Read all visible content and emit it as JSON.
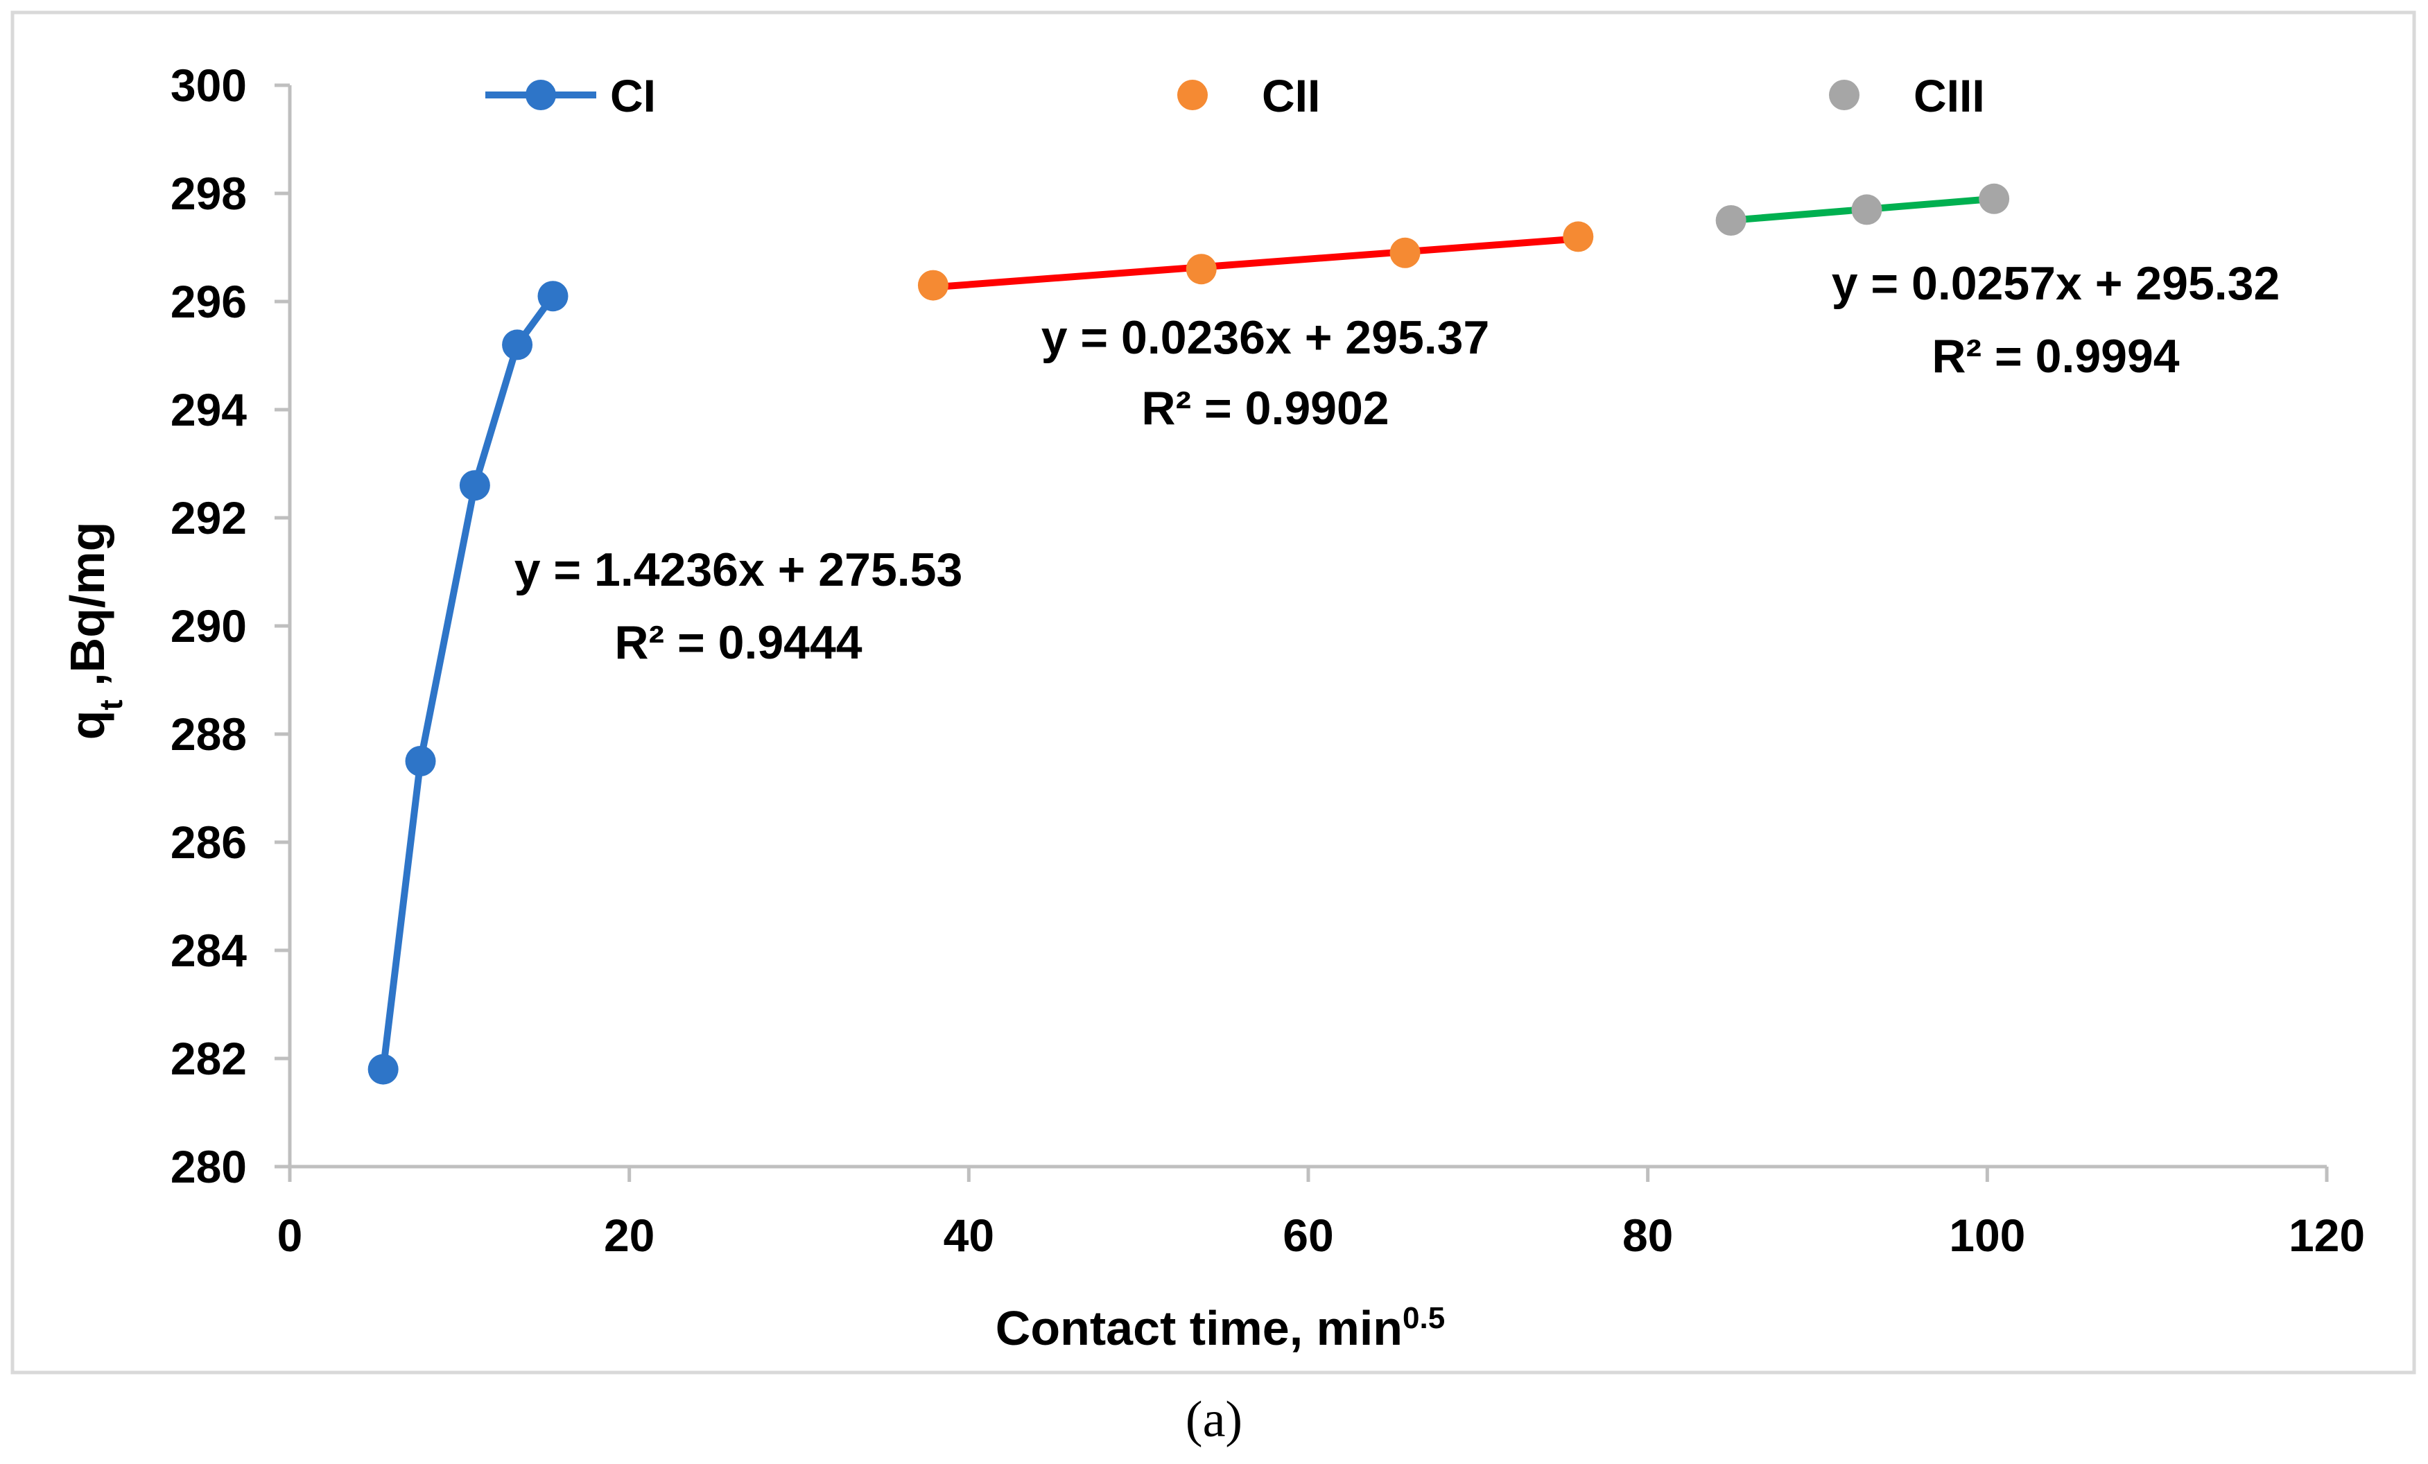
{
  "chart_data": {
    "type": "scatter",
    "caption": "(a)",
    "xlabel": "Contact time, min",
    "xlabel_superscript": "0.5",
    "ylabel": "q",
    "ylabel_subscript": "t",
    "ylabel_rest": " ,Bq/mg",
    "xlim": [
      0,
      120
    ],
    "ylim": [
      280,
      300
    ],
    "x_ticks": [
      0,
      20,
      40,
      60,
      80,
      100,
      120
    ],
    "y_ticks": [
      280,
      282,
      284,
      286,
      288,
      290,
      292,
      294,
      296,
      298,
      300
    ],
    "grid": false,
    "legend_position": "top",
    "series": [
      {
        "name": "CI",
        "color": "#2E75C8",
        "line_color": "#2E75C8",
        "connected": true,
        "points": [
          [
            5.5,
            281.8
          ],
          [
            7.7,
            287.5
          ],
          [
            10.9,
            292.6
          ],
          [
            13.4,
            295.2
          ],
          [
            15.5,
            296.1
          ]
        ],
        "equation": "y = 1.4236x + 275.53",
        "r2": "R² = 0.9444"
      },
      {
        "name": "CII",
        "color": "#F58A33",
        "line_color": "#FF0000",
        "connected": false,
        "points": [
          [
            37.9,
            296.3
          ],
          [
            53.7,
            296.6
          ],
          [
            65.7,
            296.9
          ],
          [
            75.9,
            297.2
          ]
        ],
        "trendline": {
          "slope": 0.0236,
          "intercept": 295.37,
          "x_range": [
            37.9,
            75.9
          ]
        },
        "equation": "y = 0.0236x + 295.37",
        "r2": "R² = 0.9902"
      },
      {
        "name": "CIII",
        "color": "#A6A6A6",
        "line_color": "#00B050",
        "connected": false,
        "points": [
          [
            84.9,
            297.5
          ],
          [
            92.9,
            297.7
          ],
          [
            100.4,
            297.9
          ]
        ],
        "trendline": {
          "slope": 0.0257,
          "intercept": 295.32,
          "x_range": [
            84.9,
            100.4
          ]
        },
        "equation": "y = 0.0257x + 295.32",
        "r2": "R² = 0.9994"
      }
    ]
  }
}
